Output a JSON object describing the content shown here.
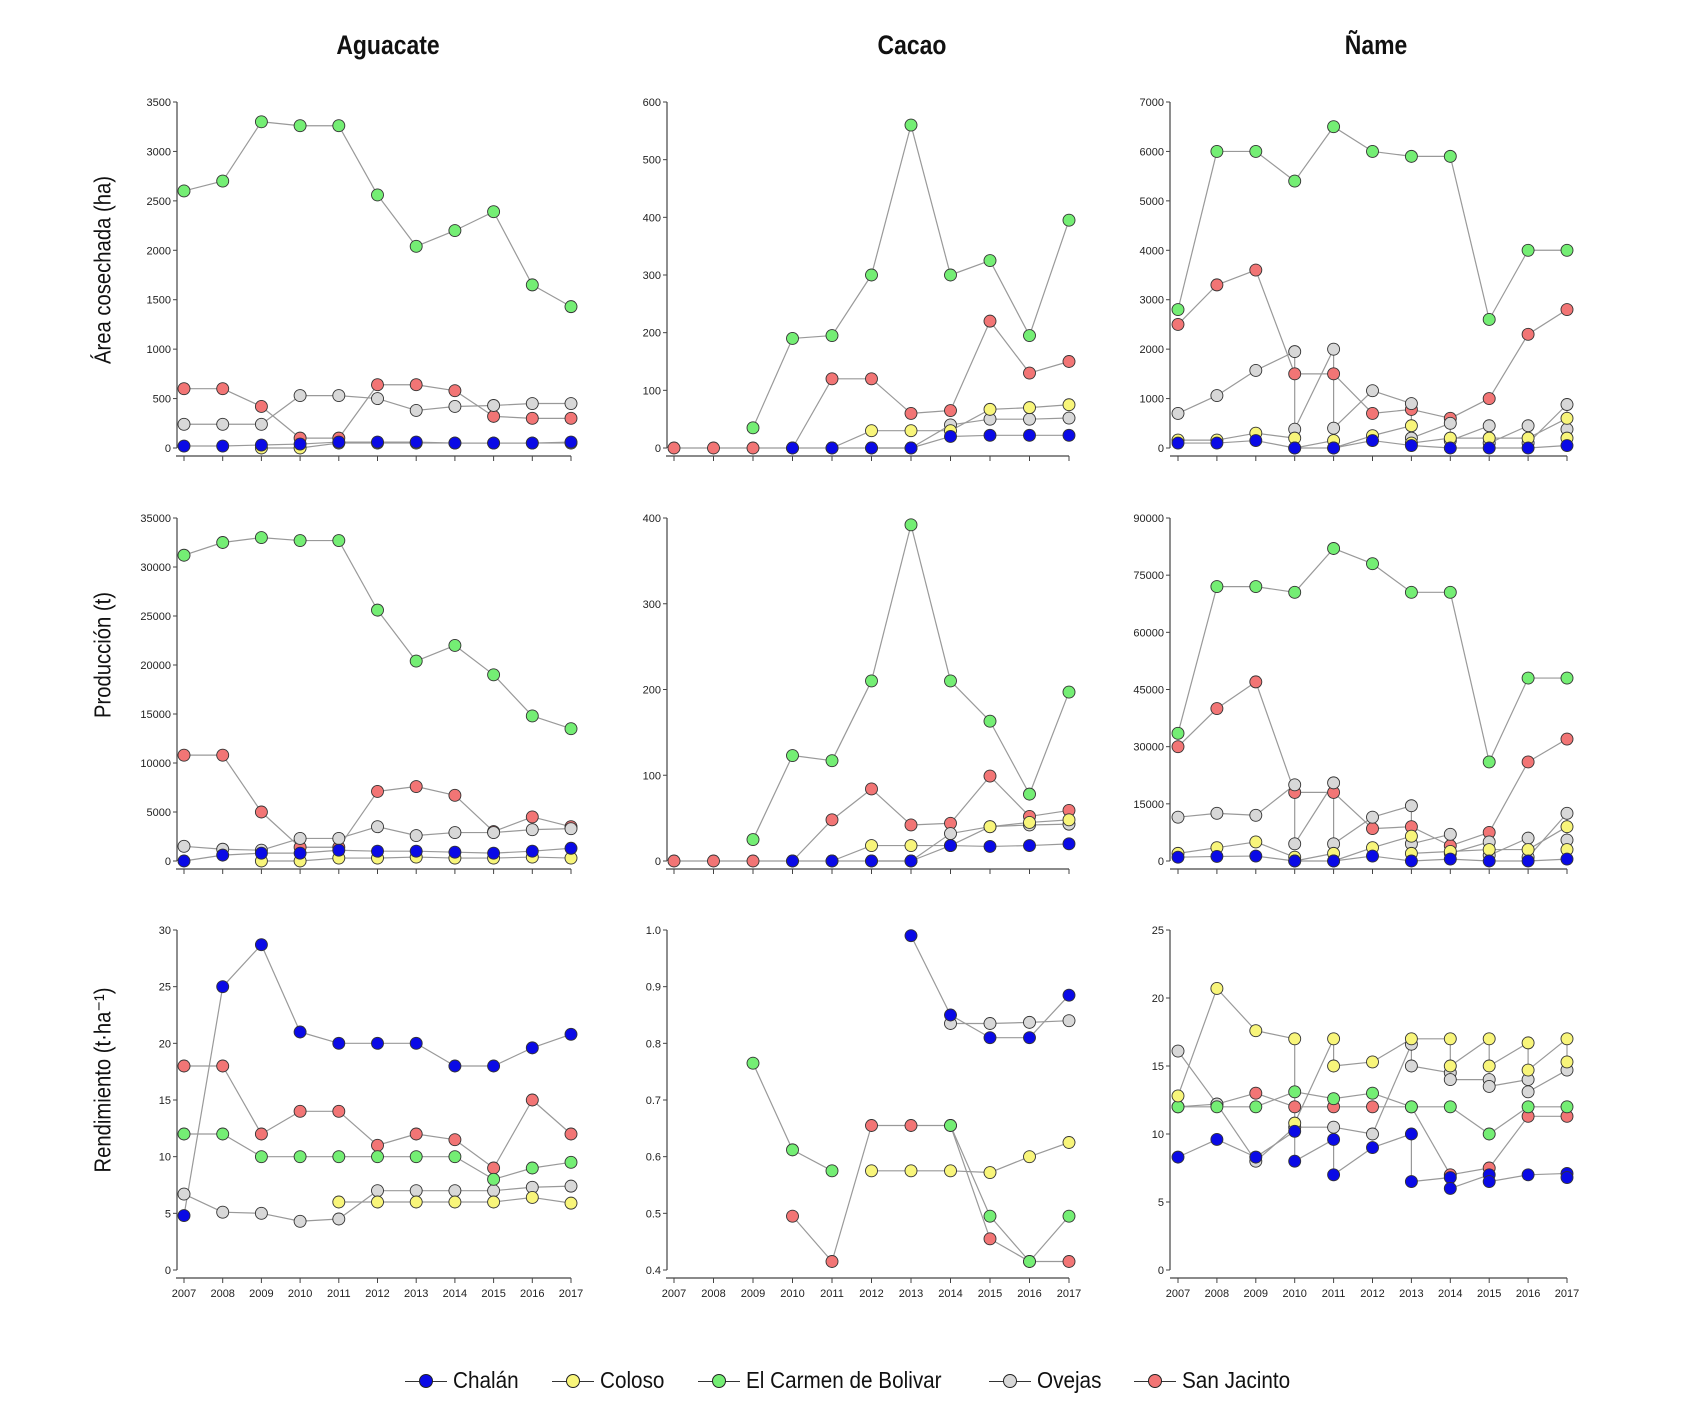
{
  "columns": [
    "Aguacate",
    "Cacao",
    "Ñame"
  ],
  "rows": [
    "Área cosechada (ha)",
    "Producción (t)",
    "Rendimiento (t·ha⁻¹)"
  ],
  "legend": [
    {
      "name": "Chalán",
      "color": "#0a0ae6"
    },
    {
      "name": "Coloso",
      "color": "#f8f57a"
    },
    {
      "name": "El Carmen de Bolivar",
      "color": "#74ee74"
    },
    {
      "name": "Ovejas",
      "color": "#d8d8d8"
    },
    {
      "name": "San Jacinto",
      "color": "#f27575"
    }
  ],
  "chart_data": [
    {
      "type": "line",
      "title": "Aguacate",
      "ylabel": "Área cosechada (ha)",
      "ylim": [
        0,
        3500
      ],
      "yticks": [
        "0",
        "500",
        "1000",
        "1500",
        "2000",
        "2500",
        "3000",
        "3500"
      ],
      "x": [
        2007,
        2008,
        2009,
        2010,
        2011,
        2012,
        2013,
        2014,
        2015,
        2016,
        2017
      ],
      "series": {
        "Chalán": [
          20,
          20,
          30,
          40,
          60,
          60,
          60,
          50,
          50,
          50,
          60
        ],
        "Coloso": [
          null,
          null,
          0,
          0,
          50,
          50,
          50,
          50,
          50,
          50,
          50
        ],
        "El Carmen de Bolivar": [
          2600,
          2700,
          3300,
          3260,
          3260,
          2560,
          2040,
          2200,
          2390,
          1650,
          1430
        ],
        "Ovejas": [
          240,
          240,
          240,
          530,
          530,
          500,
          380,
          420,
          430,
          450,
          450
        ],
        "San Jacinto": [
          600,
          600,
          420,
          100,
          100,
          640,
          640,
          580,
          320,
          300,
          300
        ]
      }
    },
    {
      "type": "line",
      "title": "Cacao",
      "ylabel": "Área cosechada (ha)",
      "ylim": [
        0,
        600
      ],
      "yticks": [
        "0",
        "100",
        "200",
        "300",
        "400",
        "500",
        "600"
      ],
      "x": [
        2007,
        2008,
        2009,
        2010,
        2011,
        2012,
        2013,
        2014,
        2015,
        2016,
        2017
      ],
      "series": {
        "Chalán": [
          null,
          null,
          null,
          0,
          0,
          0,
          0,
          20,
          22,
          22,
          22
        ],
        "Coloso": [
          null,
          null,
          null,
          null,
          0,
          30,
          30,
          30,
          67,
          70,
          75
        ],
        "El Carmen de Bolivar": [
          null,
          null,
          35,
          190,
          195,
          300,
          560,
          300,
          325,
          195,
          395
        ],
        "Ovejas": [
          null,
          null,
          null,
          null,
          null,
          0,
          0,
          40,
          50,
          50,
          52
        ],
        "San Jacinto": [
          0,
          0,
          0,
          0,
          120,
          120,
          60,
          65,
          220,
          130,
          150
        ]
      }
    },
    {
      "type": "line",
      "title": "Ñame",
      "ylabel": "Área cosechada (ha)",
      "ylim": [
        0,
        7000
      ],
      "yticks": [
        "0",
        "1000",
        "2000",
        "3000",
        "4000",
        "5000",
        "6000",
        "7000"
      ],
      "x": [
        2007,
        2008,
        2009,
        2010,
        2011,
        2012,
        2013,
        2014,
        2015,
        2016,
        2017
      ],
      "series": {
        "Chalán": [
          100,
          100,
          150,
          0,
          0,
          150,
          50,
          0,
          0,
          0,
          50
        ],
        "Coloso": [
          160,
          160,
          300,
          [
            200,
            0
          ],
          [
            150,
            0
          ],
          250,
          [
            450,
            100
          ],
          200,
          200,
          200,
          [
            600,
            200
          ]
        ],
        "El Carmen de Bolivar": [
          2800,
          6000,
          6000,
          5400,
          6500,
          6000,
          5900,
          5900,
          2600,
          4000,
          4000
        ],
        "Ovejas": [
          700,
          1060,
          1570,
          [
            1950,
            380
          ],
          [
            2000,
            400
          ],
          1160,
          [
            900,
            200
          ],
          [
            500,
            150
          ],
          [
            450,
            100
          ],
          [
            450,
            100
          ],
          [
            880,
            380
          ]
        ],
        "San Jacinto": [
          2500,
          3300,
          3600,
          1500,
          1500,
          700,
          780,
          600,
          1000,
          2300,
          2800
        ]
      }
    },
    {
      "type": "line",
      "title": "Aguacate",
      "ylabel": "Producción (t)",
      "ylim": [
        0,
        35000
      ],
      "yticks": [
        "0",
        "5000",
        "10000",
        "15000",
        "20000",
        "25000",
        "30000",
        "35000"
      ],
      "x": [
        2007,
        2008,
        2009,
        2010,
        2011,
        2012,
        2013,
        2014,
        2015,
        2016,
        2017
      ],
      "series": {
        "Chalán": [
          0,
          600,
          800,
          800,
          1100,
          1000,
          1000,
          900,
          800,
          1000,
          1300
        ],
        "Coloso": [
          null,
          null,
          0,
          0,
          300,
          300,
          400,
          300,
          300,
          400,
          300
        ],
        "El Carmen de Bolivar": [
          31200,
          32500,
          33000,
          32700,
          32700,
          25600,
          20400,
          22000,
          19000,
          14800,
          13500
        ],
        "Ovejas": [
          1500,
          1200,
          1100,
          2300,
          2300,
          3500,
          2600,
          2900,
          2900,
          3200,
          3300
        ],
        "San Jacinto": [
          10800,
          10800,
          5000,
          1400,
          1400,
          7100,
          7600,
          6700,
          3000,
          4500,
          3500
        ]
      }
    },
    {
      "type": "line",
      "title": "Cacao",
      "ylabel": "Producción (t)",
      "ylim": [
        0,
        400
      ],
      "yticks": [
        "0",
        "100",
        "200",
        "300",
        "400"
      ],
      "x": [
        2007,
        2008,
        2009,
        2010,
        2011,
        2012,
        2013,
        2014,
        2015,
        2016,
        2017
      ],
      "series": {
        "Chalán": [
          null,
          null,
          null,
          0,
          0,
          0,
          0,
          18,
          17,
          18,
          20
        ],
        "Coloso": [
          null,
          null,
          null,
          null,
          0,
          18,
          18,
          18,
          40,
          45,
          48
        ],
        "El Carmen de Bolivar": [
          null,
          null,
          25,
          123,
          117,
          210,
          392,
          210,
          163,
          78,
          197
        ],
        "Ovejas": [
          null,
          null,
          null,
          null,
          null,
          0,
          0,
          32,
          40,
          42,
          43
        ],
        "San Jacinto": [
          0,
          0,
          0,
          0,
          48,
          84,
          42,
          44,
          99,
          52,
          59
        ]
      }
    },
    {
      "type": "line",
      "title": "Ñame",
      "ylabel": "Producción (t)",
      "ylim": [
        0,
        90000
      ],
      "yticks": [
        "0",
        "15000",
        "30000",
        "45000",
        "60000",
        "75000",
        "90000"
      ],
      "x": [
        2007,
        2008,
        2009,
        2010,
        2011,
        2012,
        2013,
        2014,
        2015,
        2016,
        2017
      ],
      "series": {
        "Chalán": [
          1000,
          1200,
          1300,
          0,
          0,
          1300,
          0,
          500,
          0,
          0,
          500
        ],
        "Coloso": [
          2000,
          3500,
          5000,
          [
            1000,
            0
          ],
          [
            2000,
            0
          ],
          3500,
          [
            6500,
            2000
          ],
          2500,
          3000,
          3000,
          [
            9000,
            3000
          ]
        ],
        "El Carmen de Bolivar": [
          33500,
          72000,
          72000,
          70500,
          82000,
          78000,
          70500,
          70500,
          26000,
          48000,
          48000
        ],
        "Ovejas": [
          11500,
          12500,
          12000,
          [
            20000,
            4500
          ],
          [
            20500,
            4500
          ],
          11500,
          [
            14500,
            4500
          ],
          [
            7000,
            2000
          ],
          [
            5000,
            1500
          ],
          [
            6000,
            1000
          ],
          [
            12500,
            5500
          ]
        ],
        "San Jacinto": [
          30000,
          40000,
          47000,
          18000,
          18000,
          8500,
          9000,
          4000,
          7500,
          26000,
          32000
        ]
      }
    },
    {
      "type": "line",
      "title": "Aguacate",
      "ylabel": "Rendimiento (t·ha⁻¹)",
      "ylim": [
        0,
        30
      ],
      "yticks": [
        "0",
        "5",
        "10",
        "15",
        "20",
        "25",
        "30"
      ],
      "xticks": [
        "2007",
        "2008",
        "2009",
        "2010",
        "2011",
        "2012",
        "2013",
        "2014",
        "2015",
        "2016",
        "2017"
      ],
      "x": [
        2007,
        2008,
        2009,
        2010,
        2011,
        2012,
        2013,
        2014,
        2015,
        2016,
        2017
      ],
      "series": {
        "Chalán": [
          4.8,
          25,
          28.7,
          21,
          20,
          20,
          20,
          18,
          18,
          19.6,
          20.8
        ],
        "Coloso": [
          null,
          null,
          null,
          null,
          6,
          6,
          6,
          6,
          6,
          6.4,
          5.9
        ],
        "El Carmen de Bolivar": [
          12,
          12,
          10,
          10,
          10,
          10,
          10,
          10,
          8,
          9,
          9.5
        ],
        "Ovejas": [
          6.7,
          5.1,
          5,
          4.3,
          4.5,
          7,
          7,
          7,
          7,
          7.3,
          7.4
        ],
        "San Jacinto": [
          18,
          18,
          12,
          14,
          14,
          11,
          12,
          11.5,
          9,
          15,
          12
        ]
      }
    },
    {
      "type": "line",
      "title": "Cacao",
      "ylabel": "Rendimiento (t·ha⁻¹)",
      "ylim": [
        0.4,
        1.0
      ],
      "yticks": [
        "0.4",
        "0.5",
        "0.6",
        "0.7",
        "0.8",
        "0.9",
        "1.0"
      ],
      "xticks": [
        "2007",
        "2008",
        "2009",
        "2010",
        "2011",
        "2012",
        "2013",
        "2014",
        "2015",
        "2016",
        "2017"
      ],
      "x": [
        2007,
        2008,
        2009,
        2010,
        2011,
        2012,
        2013,
        2014,
        2015,
        2016,
        2017
      ],
      "series": {
        "Chalán": [
          null,
          null,
          null,
          null,
          null,
          null,
          0.99,
          0.85,
          0.81,
          0.81,
          0.885
        ],
        "Coloso": [
          null,
          null,
          null,
          null,
          null,
          0.575,
          0.575,
          0.575,
          0.572,
          0.6,
          0.625
        ],
        "El Carmen de Bolivar": [
          null,
          null,
          0.765,
          0.612,
          0.575,
          null,
          null,
          0.655,
          0.495,
          0.415,
          0.495
        ],
        "Ovejas": [
          null,
          null,
          null,
          null,
          null,
          null,
          null,
          0.835,
          0.835,
          0.837,
          0.84
        ],
        "San Jacinto": [
          null,
          null,
          null,
          0.495,
          0.415,
          0.655,
          0.655,
          0.655,
          0.455,
          0.415,
          0.415
        ]
      }
    },
    {
      "type": "line",
      "title": "Ñame",
      "ylabel": "Rendimiento (t·ha⁻¹)",
      "ylim": [
        0,
        25
      ],
      "yticks": [
        "0",
        "5",
        "10",
        "15",
        "20",
        "25"
      ],
      "xticks": [
        "2007",
        "2008",
        "2009",
        "2010",
        "2011",
        "2012",
        "2013",
        "2014",
        "2015",
        "2016",
        "2017"
      ],
      "x": [
        2007,
        2008,
        2009,
        2010,
        2011,
        2012,
        2013,
        2014,
        2015,
        2016,
        2017
      ],
      "series": {
        "Chalán": [
          8.3,
          9.6,
          8.3,
          [
            10.2,
            8
          ],
          [
            9.6,
            7
          ],
          9,
          [
            10,
            6.5
          ],
          [
            6.8,
            6
          ],
          [
            7,
            6.5
          ],
          7,
          [
            7.1,
            6.8
          ]
        ],
        "Coloso": [
          12.8,
          20.7,
          17.6,
          [
            17,
            10.8
          ],
          [
            17,
            15
          ],
          15.3,
          17,
          [
            17,
            15
          ],
          [
            17,
            15
          ],
          [
            16.7,
            14.7
          ],
          [
            17,
            15.3
          ]
        ],
        "El Carmen de Bolivar": [
          12,
          12,
          12,
          13.1,
          12.6,
          13,
          12,
          12,
          10,
          12,
          12
        ],
        "Ovejas": [
          16.1,
          12.2,
          8,
          10.5,
          10.5,
          10,
          [
            16.6,
            15
          ],
          [
            14.5,
            14
          ],
          [
            14,
            13.5
          ],
          [
            14,
            13.1
          ],
          14.7
        ],
        "San Jacinto": [
          12,
          12.2,
          13,
          12,
          12,
          12,
          12,
          7,
          7.5,
          11.3,
          11.3
        ]
      }
    }
  ]
}
